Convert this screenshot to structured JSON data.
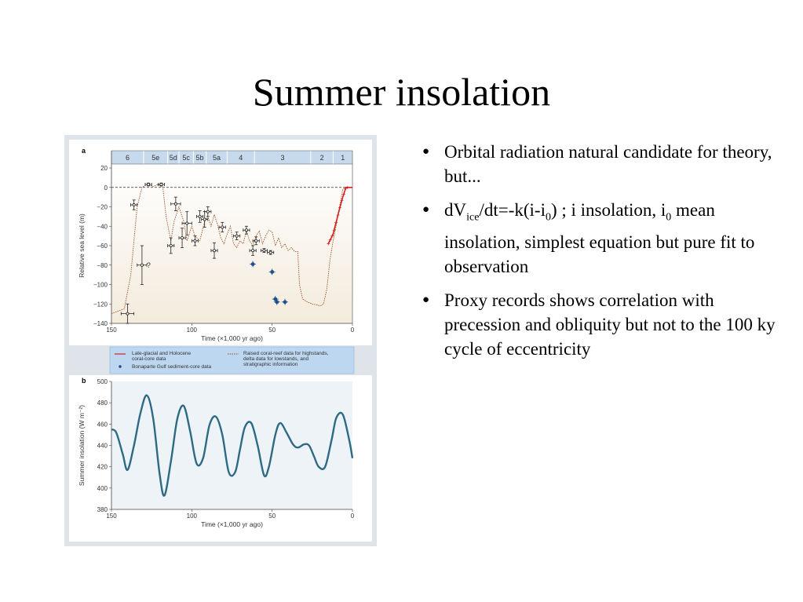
{
  "title": "Summer insolation",
  "bullets": [
    {
      "text": "Orbital radiation natural candidate for theory, but..."
    },
    {
      "p1": "dV",
      "s1": "ice",
      "p2": "/dt=-k(i-i",
      "s2": "0",
      "p3": ") ; i insolation, i",
      "s3": "0",
      "p4": " mean insolation, simplest equation but pure fit to observation"
    },
    {
      "text": "Proxy records shows correlation with precession and obliquity but not to the 100 ky cycle of eccentricity"
    }
  ],
  "chart_data": [
    {
      "type": "line",
      "panel": "a",
      "xlabel": "Time (×1,000 yr ago)",
      "ylabel": "Relative sea level (m)",
      "xlim": [
        150,
        0
      ],
      "ylim": [
        -140,
        20
      ],
      "xticks": [
        "150",
        "100",
        "50",
        "0"
      ],
      "yticks": [
        "20",
        "0",
        "−20",
        "−40",
        "−60",
        "−80",
        "−100",
        "−120",
        "−140"
      ],
      "stages": [
        {
          "label": "6",
          "from": 150,
          "to": 130
        },
        {
          "label": "5e",
          "from": 130,
          "to": 115
        },
        {
          "label": "5d",
          "from": 115,
          "to": 108
        },
        {
          "label": "5c",
          "from": 108,
          "to": 99
        },
        {
          "label": "5b",
          "from": 99,
          "to": 91
        },
        {
          "label": "5a",
          "from": 91,
          "to": 78
        },
        {
          "label": "4",
          "from": 78,
          "to": 61
        },
        {
          "label": "3",
          "from": 61,
          "to": 26
        },
        {
          "label": "2",
          "from": 26,
          "to": 12
        },
        {
          "label": "1",
          "from": 12,
          "to": 0
        }
      ],
      "zero_line": 0,
      "question_mark": "?",
      "curve": {
        "x": [
          150,
          142,
          138,
          134,
          131,
          128,
          124,
          121,
          118,
          116,
          113,
          111,
          108,
          105,
          103,
          100,
          98,
          95,
          92,
          90,
          88,
          86,
          84,
          82,
          80,
          78,
          76,
          74,
          72,
          70,
          68,
          66,
          64,
          62,
          60,
          58,
          56,
          54,
          52,
          50,
          48,
          46,
          44,
          42,
          40,
          38,
          36,
          34,
          33,
          31,
          28,
          25,
          22,
          20,
          18,
          16,
          14,
          12,
          10,
          8,
          6,
          4,
          2,
          0
        ],
        "y": [
          -130,
          -125,
          -90,
          -20,
          0,
          3,
          1,
          3,
          0,
          -30,
          -55,
          -35,
          -20,
          -35,
          -55,
          -40,
          -50,
          -55,
          -35,
          -30,
          -40,
          -28,
          -38,
          -52,
          -58,
          -48,
          -40,
          -58,
          -62,
          -55,
          -58,
          -45,
          -55,
          -60,
          -50,
          -45,
          -58,
          -50,
          -44,
          -46,
          -60,
          -52,
          -62,
          -58,
          -65,
          -62,
          -66,
          -66,
          -100,
          -115,
          -118,
          -120,
          -121,
          -122,
          -120,
          -105,
          -75,
          -55,
          -38,
          -20,
          -2,
          0,
          0,
          0
        ]
      },
      "coral_points": [
        {
          "x": 140,
          "y": -130,
          "xe": 4,
          "ye": 10
        },
        {
          "x": 136,
          "y": -18,
          "xe": 2,
          "ye": 5
        },
        {
          "x": 131,
          "y": -80,
          "xe": 3,
          "ye": 20
        },
        {
          "x": 127,
          "y": 3,
          "xe": 2,
          "ye": 1.5
        },
        {
          "x": 119,
          "y": 3,
          "xe": 2,
          "ye": 1.5
        },
        {
          "x": 113,
          "y": -60,
          "xe": 2,
          "ye": 8
        },
        {
          "x": 110,
          "y": -17,
          "xe": 3,
          "ye": 7
        },
        {
          "x": 106,
          "y": -52,
          "xe": 2,
          "ye": 10
        },
        {
          "x": 103,
          "y": -37,
          "xe": 3,
          "ye": 12
        },
        {
          "x": 98,
          "y": -55,
          "xe": 2,
          "ye": 5
        },
        {
          "x": 95,
          "y": -30,
          "xe": 2,
          "ye": 6
        },
        {
          "x": 92,
          "y": -33,
          "xe": 2,
          "ye": 8
        },
        {
          "x": 90,
          "y": -25,
          "xe": 2,
          "ye": 5
        },
        {
          "x": 86,
          "y": -65,
          "xe": 2,
          "ye": 8
        },
        {
          "x": 81,
          "y": -41,
          "xe": 2,
          "ye": 5
        },
        {
          "x": 72,
          "y": -50,
          "xe": 2,
          "ye": 4
        },
        {
          "x": 66,
          "y": -44,
          "xe": 2,
          "ye": 4
        },
        {
          "x": 62,
          "y": -65,
          "xe": 2,
          "ye": 5
        },
        {
          "x": 60,
          "y": -55,
          "xe": 2,
          "ye": 4
        },
        {
          "x": 55,
          "y": -65,
          "xe": 2,
          "ye": 2
        },
        {
          "x": 51,
          "y": -67,
          "xe": 2,
          "ye": 2
        }
      ],
      "bonaparte_points": [
        {
          "x": 62,
          "y": -79
        },
        {
          "x": 50,
          "y": -87
        },
        {
          "x": 48,
          "y": -115
        },
        {
          "x": 47,
          "y": -118
        },
        {
          "x": 42,
          "y": -118
        }
      ],
      "holocene_segment": {
        "x": [
          15,
          12,
          10,
          8,
          6,
          4,
          2,
          0
        ],
        "y": [
          -58,
          -48,
          -35,
          -22,
          -10,
          0,
          0,
          0
        ]
      },
      "legend": {
        "holocene": "Late-glacial and Holocene coral-core data",
        "bonaparte": "Bonaparte Gulf sediment-core data",
        "coral": "Raised coral-reef data for highstands, delta data for lowstands, and stratigraphic information"
      },
      "colors": {
        "curve": "#a0522d",
        "holocene": "#d62020",
        "bonaparte": "#1f4e8c",
        "points": "#222222"
      }
    },
    {
      "type": "line",
      "panel": "b",
      "xlabel": "Time (×1,000 yr ago)",
      "ylabel": "Summer insolation (W m⁻²)",
      "xlim": [
        150,
        0
      ],
      "ylim": [
        380,
        500
      ],
      "xticks": [
        "150",
        "100",
        "50",
        "0"
      ],
      "yticks": [
        "500",
        "480",
        "460",
        "440",
        "420",
        "400",
        "380"
      ],
      "series": [
        {
          "x": [
            150,
            147,
            143,
            140,
            136,
            132,
            128,
            124,
            120,
            117,
            113,
            109,
            105,
            101,
            97,
            93,
            89,
            85,
            81,
            77,
            73,
            70,
            67,
            63,
            59,
            55,
            52,
            48,
            45,
            41,
            37,
            34,
            30,
            27,
            24,
            21,
            17,
            13,
            10,
            6,
            2,
            0
          ],
          "y": [
            455,
            452,
            432,
            417,
            440,
            470,
            487,
            465,
            413,
            393,
            425,
            465,
            477,
            453,
            423,
            428,
            459,
            467,
            450,
            415,
            415,
            436,
            457,
            461,
            440,
            412,
            420,
            450,
            461,
            452,
            441,
            438,
            441,
            440,
            430,
            420,
            420,
            445,
            466,
            469,
            445,
            428
          ],
          "color": "#2e6a84"
        }
      ]
    }
  ],
  "colors": {
    "panel_bg": "#dfe4ea",
    "chart_a_bg": "#f3ebdc",
    "chart_b_bg": "#eef3f8",
    "stage_band": "#c7d9ec",
    "legend_bg": "#bcd7ef"
  }
}
